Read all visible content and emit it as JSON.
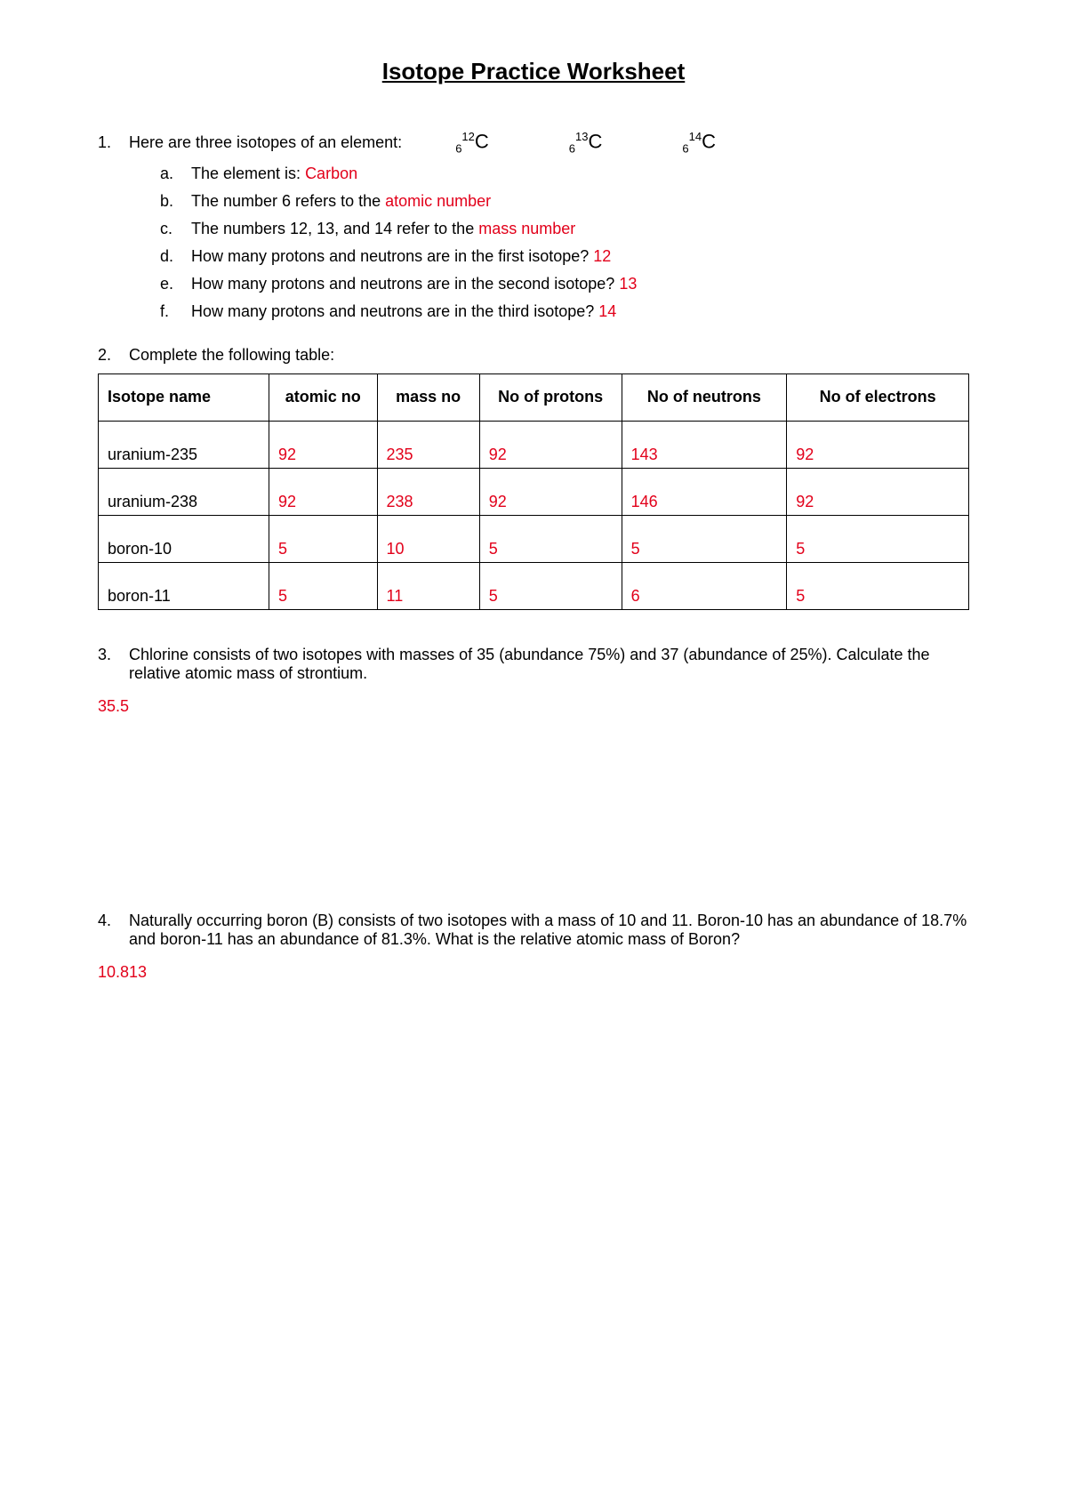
{
  "title": "Isotope Practice Worksheet",
  "q1": {
    "num": "1.",
    "prompt": "Here are three isotopes of an element:",
    "isotopes": [
      {
        "sub": "6",
        "sup": "12",
        "sym": "C"
      },
      {
        "sub": "6",
        "sup": "13",
        "sym": "C"
      },
      {
        "sub": "6",
        "sup": "14",
        "sym": "C"
      }
    ],
    "subs": [
      {
        "l": "a.",
        "t": "The element is: ",
        "a": "Carbon"
      },
      {
        "l": "b.",
        "t": "The number 6 refers to the ",
        "a": "atomic number"
      },
      {
        "l": "c.",
        "t": "The numbers 12, 13, and 14 refer to the ",
        "a": "mass number"
      },
      {
        "l": "d.",
        "t": "How many protons and neutrons are in the first isotope?  ",
        "a": "12"
      },
      {
        "l": "e.",
        "t": "How many protons and neutrons are in the second isotope?  ",
        "a": "13"
      },
      {
        "l": "f.",
        "t": "How many protons and neutrons are in the third isotope? ",
        "a": "14"
      }
    ]
  },
  "q2": {
    "num": "2.",
    "prompt": "Complete the following table:",
    "columns": [
      "Isotope name",
      "atomic no",
      "mass no",
      "No of protons",
      "No of neutrons",
      "No of electrons"
    ],
    "col_widths": [
      "150px",
      "95px",
      "90px",
      "125px",
      "145px",
      "160px"
    ],
    "rows": [
      {
        "name": "uranium-235",
        "cells": [
          "92",
          "235",
          "92",
          "143",
          "92"
        ]
      },
      {
        "name": "uranium-238",
        "cells": [
          "92",
          "238",
          "92",
          "146",
          "92"
        ]
      },
      {
        "name": "boron-10",
        "cells": [
          "5",
          "10",
          "5",
          "5",
          "5"
        ]
      },
      {
        "name": "boron-11",
        "cells": [
          "5",
          "11",
          "5",
          "6",
          "5"
        ]
      }
    ]
  },
  "q3": {
    "num": "3.",
    "prompt": "Chlorine consists of two isotopes with masses of 35 (abundance 75%) and 37 (abundance of 25%). Calculate the relative atomic mass of strontium.",
    "answer": "35.5"
  },
  "q4": {
    "num": "4.",
    "prompt": "Naturally occurring boron (B) consists of two isotopes with a mass of 10 and 11.  Boron-10 has an abundance of 18.7% and boron-11 has an abundance of 81.3%.  What is the relative atomic mass of Boron?",
    "answer": "10.813"
  },
  "answer_color": "#e2001a"
}
